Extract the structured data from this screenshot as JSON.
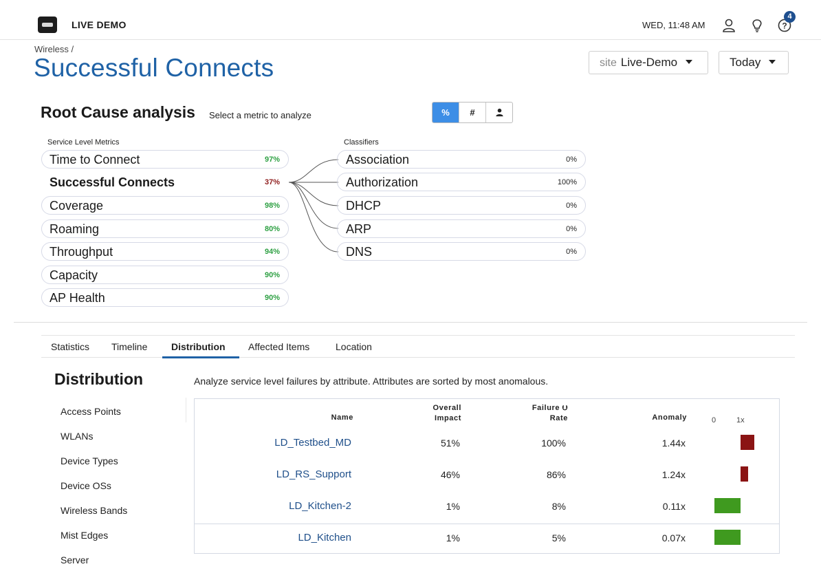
{
  "topbar": {
    "org_name": "LIVE DEMO",
    "datetime": "WED, 11:48 AM",
    "notification_count": "4",
    "icons": [
      "logo-icon",
      "user-icon",
      "lightbulb-icon",
      "help-icon"
    ]
  },
  "header": {
    "breadcrumb": "Wireless /",
    "title": "Successful Connects",
    "site_prefix": "site",
    "site_value": "Live-Demo",
    "range_value": "Today"
  },
  "root_cause": {
    "title": "Root Cause analysis",
    "subtitle": "Select a metric to analyze",
    "toggle": [
      "%",
      "#",
      "user-icon"
    ],
    "metrics_header": "Service Level Metrics",
    "classifiers_header": "Classifiers",
    "metrics": [
      {
        "label": "Time to Connect",
        "value": "97%"
      },
      {
        "label": "Successful Connects",
        "value": "37%",
        "selected": true
      },
      {
        "label": "Coverage",
        "value": "98%"
      },
      {
        "label": "Roaming",
        "value": "80%"
      },
      {
        "label": "Throughput",
        "value": "94%"
      },
      {
        "label": "Capacity",
        "value": "90%"
      },
      {
        "label": "AP Health",
        "value": "90%"
      }
    ],
    "classifiers": [
      {
        "label": "Association",
        "value": "0%"
      },
      {
        "label": "Authorization",
        "value": "100%"
      },
      {
        "label": "DHCP",
        "value": "0%"
      },
      {
        "label": "ARP",
        "value": "0%"
      },
      {
        "label": "DNS",
        "value": "0%"
      }
    ],
    "colors": {
      "good": "#2ea043",
      "bad": "#8f1d1d",
      "accent": "#3d8ee6"
    }
  },
  "tabs": [
    "Statistics",
    "Timeline",
    "Distribution",
    "Affected Items",
    "Location"
  ],
  "active_tab": "Distribution",
  "distribution": {
    "title": "Distribution",
    "subtitle": "Analyze service level failures by attribute. Attributes are sorted by most anomalous.",
    "attributes": [
      "Access Points",
      "WLANs",
      "Device Types",
      "Device OSs",
      "Wireless Bands",
      "Mist Edges",
      "Server"
    ],
    "columns": {
      "name": "Name",
      "impact_1": "Overall",
      "impact_2": "Impact",
      "failure_1": "Failure",
      "failure_2": "Rate",
      "anomaly": "Anomaly",
      "scale_min": "0",
      "scale_max": "1x"
    },
    "rows": [
      {
        "name": "LD_Testbed_MD",
        "impact": "51%",
        "failure_rate": "100%",
        "anomaly": "1.44x",
        "anomaly_value": 1.44,
        "color": "#8b1414"
      },
      {
        "name": "LD_RS_Support",
        "impact": "46%",
        "failure_rate": "86%",
        "anomaly": "1.24x",
        "anomaly_value": 1.24,
        "color": "#8b1414"
      },
      {
        "name": "LD_Kitchen-2",
        "impact": "1%",
        "failure_rate": "8%",
        "anomaly": "0.11x",
        "anomaly_value": 0.11,
        "color": "#3f9a1f"
      },
      {
        "name": "LD_Kitchen",
        "impact": "1%",
        "failure_rate": "5%",
        "anomaly": "0.07x",
        "anomaly_value": 0.07,
        "color": "#3f9a1f"
      }
    ]
  }
}
